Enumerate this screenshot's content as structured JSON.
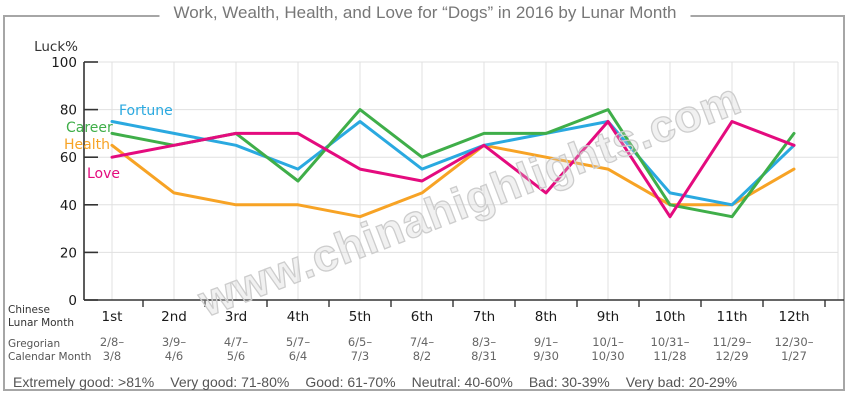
{
  "title": "Work, Wealth, Health, and Love for “Dogs” in 2016 by Lunar Month",
  "watermark": "www.chinahighlights.com",
  "axis_panel": {
    "lunar_label_line1": "Chinese",
    "lunar_label_line2": "Lunar Month",
    "gregorian_label_line1": "Gregorian",
    "gregorian_label_line2": "Calendar Month"
  },
  "rating_legend": {
    "items": [
      "Extremely good: >81%",
      "Very good: 71-80%",
      "Good: 61-70%",
      "Neutral: 40-60%",
      "Bad: 30-39%",
      "Very bad: 20-29%"
    ]
  },
  "chart_data": {
    "type": "line",
    "title": "Work, Wealth, Health, and Love for “Dogs” in 2016 by Lunar Month",
    "ylabel": "Luck%",
    "xlabel": "Chinese Lunar Month",
    "ylim": [
      0,
      100
    ],
    "yticks": [
      0,
      20,
      40,
      60,
      80,
      100
    ],
    "grid": true,
    "legend_position": "inline-left",
    "categories": [
      "1st",
      "2nd",
      "3rd",
      "4th",
      "5th",
      "6th",
      "7th",
      "8th",
      "9th",
      "10th",
      "11th",
      "12th"
    ],
    "gregorian_ranges": [
      [
        "2/8–",
        "3/8"
      ],
      [
        "3/9–",
        "4/6"
      ],
      [
        "4/7–",
        "5/6"
      ],
      [
        "5/7–",
        "6/4"
      ],
      [
        "6/5–",
        "7/3"
      ],
      [
        "7/4–",
        "8/2"
      ],
      [
        "8/3–",
        "8/31"
      ],
      [
        "9/1–",
        "9/30"
      ],
      [
        "10/1–",
        "10/30"
      ],
      [
        "10/31–",
        "11/28"
      ],
      [
        "11/29–",
        "12/29"
      ],
      [
        "12/30–",
        "1/27"
      ]
    ],
    "series": [
      {
        "name": "Fortune",
        "color": "#2AA9E0",
        "values": [
          75,
          70,
          65,
          55,
          75,
          55,
          65,
          70,
          75,
          45,
          40,
          65
        ]
      },
      {
        "name": "Career",
        "color": "#3FAE49",
        "values": [
          70,
          65,
          70,
          50,
          80,
          60,
          70,
          70,
          80,
          40,
          35,
          70
        ]
      },
      {
        "name": "Health",
        "color": "#F7A325",
        "values": [
          65,
          45,
          40,
          40,
          35,
          45,
          65,
          60,
          55,
          40,
          40,
          55
        ]
      },
      {
        "name": "Love",
        "color": "#E40B7E",
        "values": [
          60,
          65,
          70,
          70,
          55,
          50,
          65,
          45,
          75,
          35,
          75,
          65
        ]
      }
    ],
    "axis_colors": {
      "axis_line": "#333333",
      "grid_line": "#e0e0e0",
      "tick_label": "#1a1a1a",
      "date_label": "#666666"
    }
  }
}
